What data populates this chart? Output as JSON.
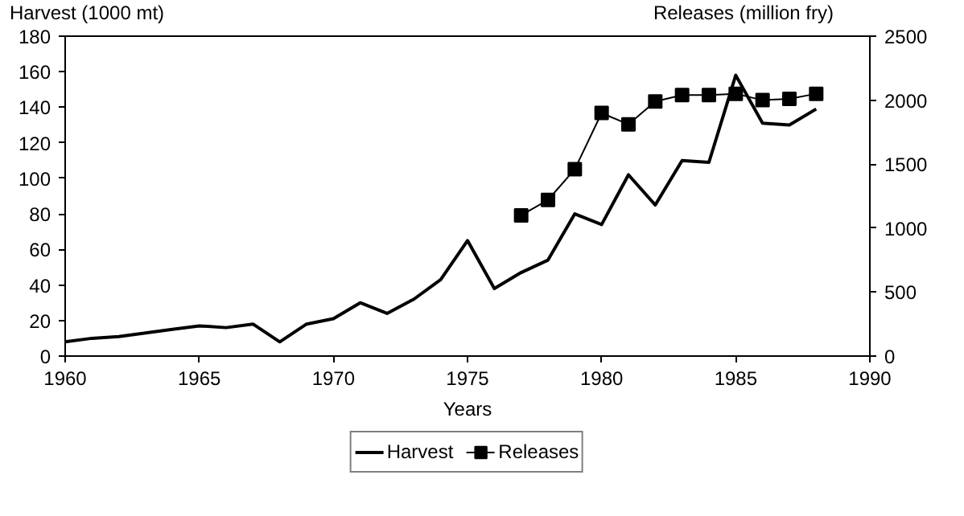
{
  "chart_data": {
    "type": "line",
    "ylabel": "Harvest (1000 mt)",
    "y2label": "Releases (million fry)",
    "xlabel": "Years",
    "xlim": [
      1960,
      1990
    ],
    "xticks": [
      1960,
      1965,
      1970,
      1975,
      1980,
      1985,
      1990
    ],
    "ylim": [
      0,
      180
    ],
    "yticks": [
      0,
      20,
      40,
      60,
      80,
      100,
      120,
      140,
      160,
      180
    ],
    "y2lim": [
      0,
      2500
    ],
    "y2ticks": [
      0,
      500,
      1000,
      1500,
      2000,
      2500
    ],
    "grid": false,
    "legend": "bottom",
    "series": [
      {
        "name": "Harvest",
        "color": "#000000",
        "marker": "none",
        "x": [
          1960,
          1961,
          1962,
          1963,
          1964,
          1965,
          1966,
          1967,
          1968,
          1969,
          1970,
          1971,
          1972,
          1973,
          1974,
          1975,
          1976,
          1977,
          1978,
          1979,
          1980,
          1981,
          1982,
          1983,
          1984,
          1985,
          1986,
          1987,
          1988
        ],
        "values": [
          8,
          10,
          11,
          13,
          15,
          17,
          16,
          18,
          8,
          18,
          21,
          30,
          24,
          32,
          43,
          65,
          38,
          47,
          54,
          80,
          74,
          102,
          85,
          110,
          109,
          158,
          131,
          130,
          139
        ]
      },
      {
        "name": "Releases",
        "color": "#000000",
        "marker": "square",
        "axis": "y2",
        "x": [
          1977,
          1978,
          1979,
          1980,
          1981,
          1982,
          1983,
          1984,
          1985,
          1986,
          1987,
          1988
        ],
        "values": [
          1100,
          1220,
          1460,
          1900,
          1810,
          1990,
          2040,
          2040,
          2050,
          2000,
          2010,
          2050
        ]
      }
    ]
  }
}
